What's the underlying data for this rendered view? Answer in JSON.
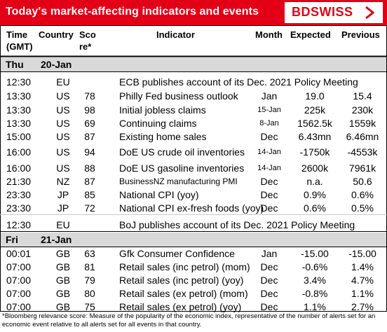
{
  "header": {
    "title": "Today's market-affecting indicators and events",
    "logo_text": "BDSWISS",
    "logo_mark_icon": "bdswiss-chevron-icon",
    "brand_color": "#e30016"
  },
  "columns": {
    "time_line1": "Time",
    "time_line2": "(GMT)",
    "country": "Country",
    "score_line1": "Sco",
    "score_line2": "re*",
    "indicator": "Indicator",
    "month": "Month",
    "expected": "Expected",
    "previous": "Previous"
  },
  "days": [
    {
      "day": "Thu",
      "date": "20-Jan"
    },
    {
      "day": "Fri",
      "date": "21-Jan"
    }
  ],
  "rows": [
    {
      "time": "12:30",
      "country": "EU",
      "score": "",
      "indicator": "ECB publishes account of its Dec. 2021 Policy Meeting",
      "month": "",
      "expected": "",
      "previous": ""
    },
    {
      "time": "13:30",
      "country": "US",
      "score": "78",
      "indicator": "Philly Fed business outlook",
      "month": "Jan",
      "expected": "19.0",
      "previous": "15.4"
    },
    {
      "time": "13:30",
      "country": "US",
      "score": "98",
      "indicator": "Initial jobless claims",
      "month": "15-Jan",
      "expected": "225k",
      "previous": "230k"
    },
    {
      "time": "13:30",
      "country": "US",
      "score": "69",
      "indicator": "Continuing claims",
      "month": "8-Jan",
      "expected": "1562.5k",
      "previous": "1559k"
    },
    {
      "time": "15:00",
      "country": "US",
      "score": "87",
      "indicator": "Existing home sales",
      "month": "Dec",
      "expected": "6.43mn",
      "previous": "6.46mn"
    },
    {
      "time": "16:00",
      "country": "US",
      "score": "94",
      "indicator": "DoE US crude oil inventories",
      "month": "14-Jan",
      "expected": "-1750k",
      "previous": "-4553k"
    },
    {
      "time": "16:00",
      "country": "US",
      "score": "88",
      "indicator": "DoE US gasoline inventories",
      "month": "14-Jan",
      "expected": "2600k",
      "previous": "7961k"
    },
    {
      "time": "21:30",
      "country": "NZ",
      "score": "87",
      "indicator": "BusinessNZ manufacturing PMI",
      "month": "Dec",
      "expected": "n.a.",
      "previous": "50.6"
    },
    {
      "time": "23:30",
      "country": "JP",
      "score": "85",
      "indicator": "National CPI (yoy)",
      "month": "Dec",
      "expected": "0.9%",
      "previous": "0.6%"
    },
    {
      "time": "23:30",
      "country": "JP",
      "score": "72",
      "indicator": "National CPI ex-fresh foods (yoy)",
      "month": "Dec",
      "expected": "0.6%",
      "previous": "0.5%"
    },
    {
      "time": "12:30",
      "country": "EU",
      "score": "",
      "indicator": "BoJ publishes account of its Dec. 2021 Policy Meeting",
      "month": "",
      "expected": "",
      "previous": ""
    },
    {
      "time": "00:01",
      "country": "GB",
      "score": "63",
      "indicator": "Gfk Consumer Confidence",
      "month": "Jan",
      "expected": "-15.00",
      "previous": "-15.00"
    },
    {
      "time": "07:00",
      "country": "GB",
      "score": "81",
      "indicator": "Retail sales (inc petrol) (mom)",
      "month": "Dec",
      "expected": "-0.6%",
      "previous": "1.4%"
    },
    {
      "time": "07:00",
      "country": "GB",
      "score": "79",
      "indicator": "Retail sales (inc petrol) (yoy)",
      "month": "Dec",
      "expected": "3.4%",
      "previous": "4.7%"
    },
    {
      "time": "07:00",
      "country": "GB",
      "score": "80",
      "indicator": "Retail sales (ex petrol) (mom)",
      "month": "Dec",
      "expected": "-0.8%",
      "previous": "1.1%"
    },
    {
      "time": "07:00",
      "country": "GB",
      "score": "75",
      "indicator": "Retail sales (ex petrol) (yoy)",
      "month": "Dec",
      "expected": "1.1%",
      "previous": "2.7%"
    }
  ],
  "footnote": "*Bloomberg relevance score: Measure of the popularity of the economic index, representative of the number of alerts set for an economic event relative to all alerts set for all events in that country."
}
